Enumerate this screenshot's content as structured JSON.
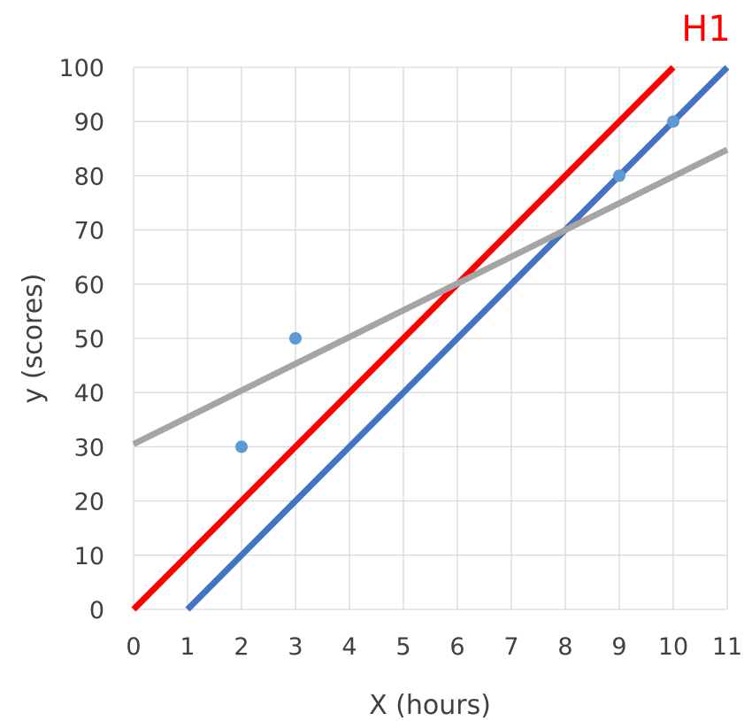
{
  "chart_data": {
    "type": "scatter",
    "title": "",
    "xlabel": "X (hours)",
    "ylabel": "y (scores)",
    "xlim": [
      0,
      11
    ],
    "ylim": [
      0,
      100
    ],
    "x_ticks": [
      0,
      1,
      2,
      3,
      4,
      5,
      6,
      7,
      8,
      9,
      10,
      11
    ],
    "y_ticks": [
      0,
      10,
      20,
      30,
      40,
      50,
      60,
      70,
      80,
      90,
      100
    ],
    "grid": true,
    "legend": "none",
    "points": {
      "color": "#5b9bd5",
      "x": [
        2,
        3,
        9,
        10
      ],
      "y": [
        30,
        50,
        80,
        90
      ]
    },
    "lines": [
      {
        "color": "#ff0000",
        "x": [
          0,
          10
        ],
        "y": [
          0,
          100
        ]
      },
      {
        "color": "#4472c4",
        "x": [
          1,
          11
        ],
        "y": [
          0,
          100
        ]
      },
      {
        "color": "#a5a5a5",
        "x": [
          0,
          11
        ],
        "y": [
          30.5,
          84.8
        ]
      }
    ],
    "annotations": [
      {
        "text": "H1",
        "color": "#ff0000"
      }
    ]
  }
}
